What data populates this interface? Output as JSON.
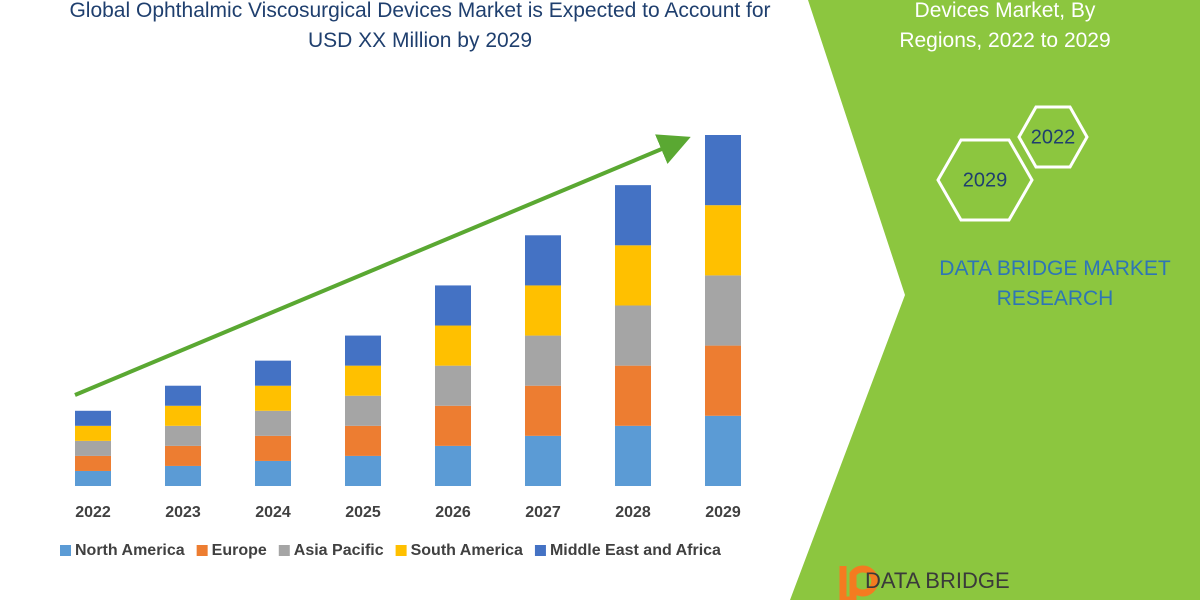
{
  "chart_data": {
    "type": "stacked-bar",
    "title": "Global Ophthalmic Viscosurgical Devices Market is Expected to Account for USD XX Million by 2029",
    "categories": [
      "2022",
      "2023",
      "2024",
      "2025",
      "2026",
      "2027",
      "2028",
      "2029"
    ],
    "series": [
      {
        "name": "North America",
        "color": "#5b9bd5",
        "values": [
          15,
          20,
          25,
          30,
          40,
          50,
          60,
          70
        ]
      },
      {
        "name": "Europe",
        "color": "#ed7d31",
        "values": [
          15,
          20,
          25,
          30,
          40,
          50,
          60,
          70
        ]
      },
      {
        "name": "Asia Pacific",
        "color": "#a5a5a5",
        "values": [
          15,
          20,
          25,
          30,
          40,
          50,
          60,
          70
        ]
      },
      {
        "name": "South America",
        "color": "#ffc000",
        "values": [
          15,
          20,
          25,
          30,
          40,
          50,
          60,
          70
        ]
      },
      {
        "name": "Middle East and Africa",
        "color": "#4472c4",
        "values": [
          15,
          20,
          25,
          30,
          40,
          50,
          60,
          70
        ]
      }
    ]
  },
  "side_panel": {
    "title": "Devices Market, By Regions, 2022 to 2029",
    "hexagons": [
      "2022",
      "2029"
    ],
    "brand": "DATA BRIDGE MARKET RESEARCH"
  },
  "logo": {
    "text": "DATA BRIDGE"
  }
}
